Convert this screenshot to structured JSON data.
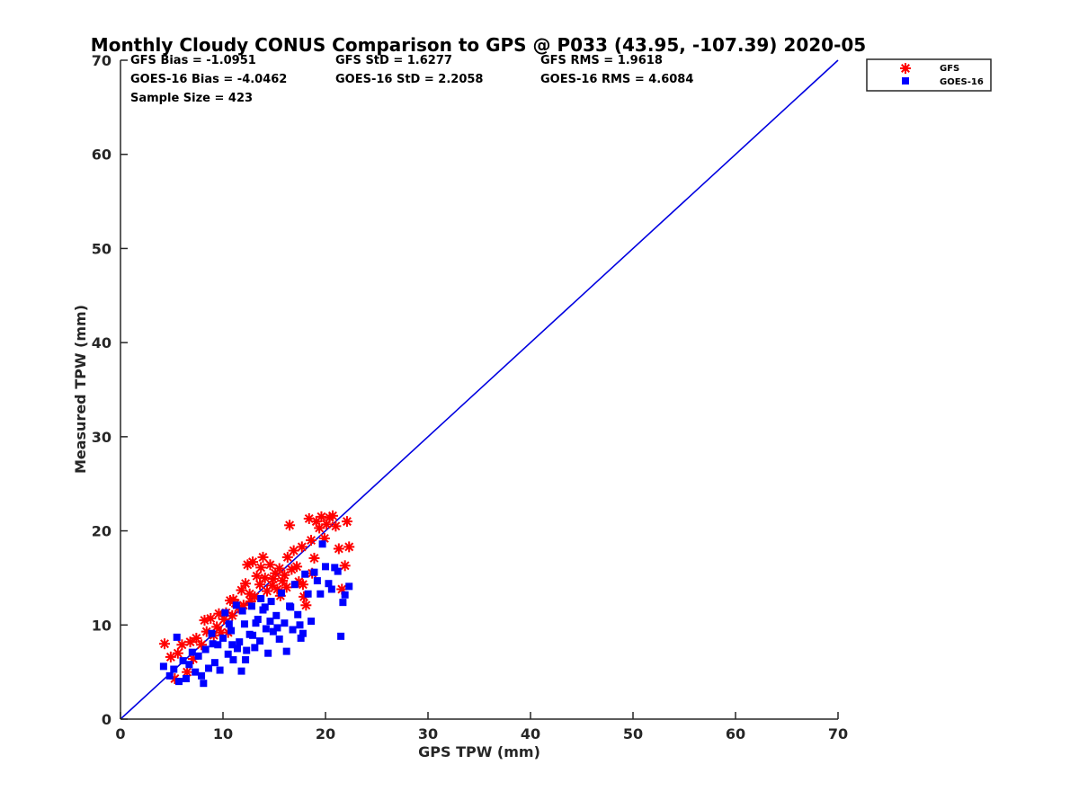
{
  "chart_data": {
    "type": "scatter",
    "title": "Monthly Cloudy CONUS Comparison to GPS @ P033 (43.95, -107.39) 2020-05",
    "xlabel": "GPS TPW (mm)",
    "ylabel": "Measured TPW (mm)",
    "xlim": [
      0,
      70
    ],
    "ylim": [
      0,
      70
    ],
    "xticks": [
      "0",
      "10",
      "20",
      "30",
      "40",
      "50",
      "60",
      "70"
    ],
    "yticks": [
      "0",
      "10",
      "20",
      "30",
      "40",
      "50",
      "60",
      "70"
    ],
    "grid": false,
    "legend_position": "top-right",
    "reference_line": {
      "from": [
        0,
        0
      ],
      "to": [
        70,
        70
      ],
      "color": "#0000e0"
    },
    "stats": {
      "gfs_bias": "GFS Bias = -1.0951",
      "gfs_std": "GFS StD = 1.6277",
      "gfs_rms": "GFS RMS = 1.9618",
      "goes_bias": "GOES-16 Bias = -4.0462",
      "goes_std": "GOES-16 StD = 2.2058",
      "goes_rms": "GOES-16 RMS = 4.6084",
      "sample_size": "Sample Size = 423"
    },
    "series": [
      {
        "name": "GFS",
        "marker": "asterisk",
        "color": "#ff0000",
        "points": [
          [
            4.3,
            8.0
          ],
          [
            4.9,
            6.6
          ],
          [
            5.3,
            4.3
          ],
          [
            5.6,
            7.0
          ],
          [
            6.0,
            7.9
          ],
          [
            6.5,
            5.0
          ],
          [
            6.8,
            8.2
          ],
          [
            7.1,
            6.4
          ],
          [
            7.4,
            8.6
          ],
          [
            7.9,
            7.9
          ],
          [
            8.2,
            10.5
          ],
          [
            8.4,
            9.3
          ],
          [
            8.8,
            10.7
          ],
          [
            9.1,
            8.9
          ],
          [
            9.4,
            9.8
          ],
          [
            9.8,
            9.2
          ],
          [
            10.1,
            10.6
          ],
          [
            10.3,
            11.3
          ],
          [
            10.7,
            12.6
          ],
          [
            10.9,
            11.0
          ],
          [
            11.2,
            12.3
          ],
          [
            11.5,
            11.8
          ],
          [
            11.8,
            13.7
          ],
          [
            12.0,
            12.1
          ],
          [
            12.2,
            14.4
          ],
          [
            12.6,
            13.3
          ],
          [
            12.9,
            16.7
          ],
          [
            13.1,
            13.0
          ],
          [
            13.3,
            15.2
          ],
          [
            13.6,
            14.3
          ],
          [
            13.9,
            17.2
          ],
          [
            14.1,
            15.0
          ],
          [
            14.3,
            13.6
          ],
          [
            14.6,
            16.4
          ],
          [
            14.8,
            14.2
          ],
          [
            15.1,
            15.5
          ],
          [
            15.3,
            13.8
          ],
          [
            15.5,
            16.0
          ],
          [
            15.8,
            14.7
          ],
          [
            16.0,
            15.3
          ],
          [
            16.2,
            14.0
          ],
          [
            16.5,
            20.6
          ],
          [
            16.7,
            15.9
          ],
          [
            16.9,
            17.9
          ],
          [
            17.2,
            16.2
          ],
          [
            17.4,
            14.6
          ],
          [
            17.7,
            18.3
          ],
          [
            17.9,
            13.0
          ],
          [
            18.1,
            12.1
          ],
          [
            18.4,
            21.3
          ],
          [
            18.6,
            19.0
          ],
          [
            18.9,
            17.1
          ],
          [
            19.1,
            21.0
          ],
          [
            19.4,
            20.3
          ],
          [
            19.6,
            21.5
          ],
          [
            19.9,
            19.2
          ],
          [
            20.1,
            20.7
          ],
          [
            20.4,
            21.4
          ],
          [
            20.7,
            21.6
          ],
          [
            21.0,
            20.5
          ],
          [
            21.3,
            18.1
          ],
          [
            21.6,
            13.8
          ],
          [
            21.9,
            16.3
          ],
          [
            22.1,
            21.0
          ],
          [
            22.3,
            18.3
          ],
          [
            12.4,
            16.4
          ],
          [
            13.7,
            16.1
          ],
          [
            11.0,
            12.7
          ],
          [
            9.6,
            11.2
          ],
          [
            14.9,
            14.9
          ],
          [
            16.3,
            17.2
          ],
          [
            15.6,
            13.1
          ],
          [
            17.8,
            14.3
          ],
          [
            10.5,
            9.2
          ],
          [
            12.7,
            12.5
          ],
          [
            18.7,
            15.5
          ]
        ]
      },
      {
        "name": "GOES-16",
        "marker": "square",
        "color": "#0000ff",
        "points": [
          [
            4.2,
            5.6
          ],
          [
            4.8,
            4.6
          ],
          [
            5.2,
            5.3
          ],
          [
            5.5,
            8.7
          ],
          [
            5.7,
            4.0
          ],
          [
            6.1,
            6.2
          ],
          [
            6.4,
            4.3
          ],
          [
            6.7,
            5.8
          ],
          [
            7.0,
            7.1
          ],
          [
            7.3,
            5.0
          ],
          [
            7.6,
            6.7
          ],
          [
            7.9,
            4.6
          ],
          [
            8.1,
            3.8
          ],
          [
            8.3,
            7.4
          ],
          [
            8.6,
            5.4
          ],
          [
            8.9,
            9.1
          ],
          [
            9.2,
            6.0
          ],
          [
            9.5,
            7.9
          ],
          [
            9.7,
            5.2
          ],
          [
            10.0,
            8.6
          ],
          [
            10.2,
            11.3
          ],
          [
            10.5,
            6.9
          ],
          [
            10.8,
            9.4
          ],
          [
            11.0,
            6.3
          ],
          [
            11.3,
            12.1
          ],
          [
            11.6,
            8.2
          ],
          [
            11.8,
            5.1
          ],
          [
            12.1,
            10.1
          ],
          [
            12.3,
            7.3
          ],
          [
            12.6,
            9.0
          ],
          [
            12.8,
            12.0
          ],
          [
            13.1,
            7.6
          ],
          [
            13.4,
            10.6
          ],
          [
            13.6,
            8.3
          ],
          [
            13.9,
            11.6
          ],
          [
            14.2,
            9.6
          ],
          [
            14.4,
            7.0
          ],
          [
            14.7,
            12.5
          ],
          [
            14.9,
            9.3
          ],
          [
            15.2,
            11.0
          ],
          [
            15.5,
            8.5
          ],
          [
            15.7,
            13.4
          ],
          [
            16.0,
            10.2
          ],
          [
            16.2,
            7.2
          ],
          [
            16.5,
            12.0
          ],
          [
            16.8,
            9.5
          ],
          [
            17.0,
            14.3
          ],
          [
            17.3,
            11.1
          ],
          [
            17.5,
            10.0
          ],
          [
            17.8,
            9.1
          ],
          [
            18.0,
            15.4
          ],
          [
            18.3,
            13.3
          ],
          [
            18.6,
            10.4
          ],
          [
            18.9,
            15.6
          ],
          [
            19.2,
            14.7
          ],
          [
            19.5,
            13.3
          ],
          [
            19.7,
            18.6
          ],
          [
            20.0,
            16.2
          ],
          [
            20.3,
            14.4
          ],
          [
            20.6,
            13.8
          ],
          [
            20.9,
            16.1
          ],
          [
            21.2,
            15.7
          ],
          [
            21.5,
            8.8
          ],
          [
            21.7,
            12.4
          ],
          [
            21.9,
            13.2
          ],
          [
            22.3,
            14.1
          ],
          [
            9.0,
            8.0
          ],
          [
            10.6,
            10.1
          ],
          [
            11.9,
            11.5
          ],
          [
            12.9,
            8.9
          ],
          [
            13.7,
            12.8
          ],
          [
            14.6,
            10.4
          ],
          [
            15.3,
            9.7
          ],
          [
            11.4,
            7.5
          ],
          [
            12.2,
            6.3
          ],
          [
            16.6,
            11.9
          ],
          [
            17.6,
            8.6
          ],
          [
            10.9,
            7.9
          ],
          [
            13.2,
            10.2
          ],
          [
            14.1,
            11.9
          ]
        ]
      }
    ]
  }
}
